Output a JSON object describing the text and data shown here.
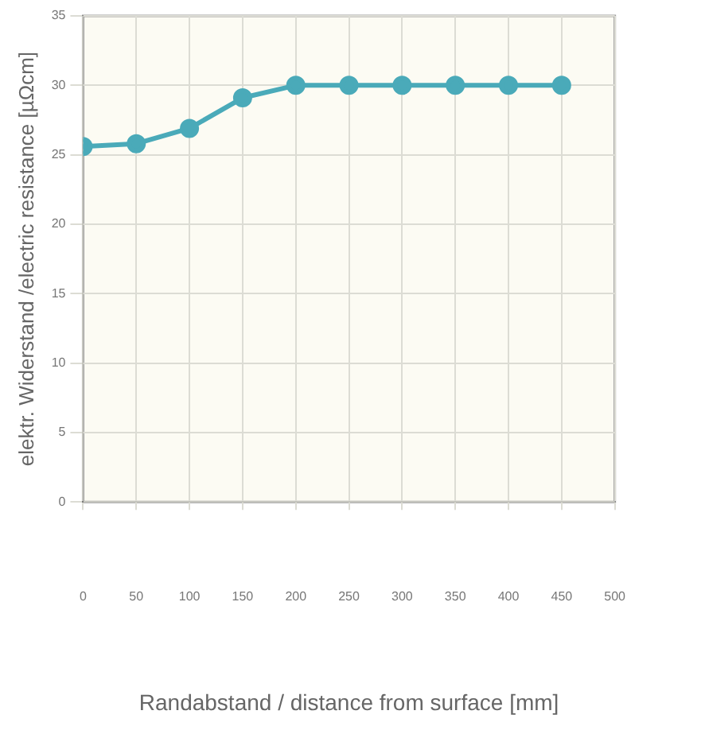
{
  "chart_data": {
    "type": "line",
    "xlabel": "Randabstand / distance from surface [mm]",
    "ylabel": "elektr. Widerstand /electric resistance [µΩcm]",
    "x": [
      0,
      50,
      100,
      150,
      200,
      250,
      300,
      350,
      400,
      450
    ],
    "series": [
      {
        "color": "#4aaab9",
        "values": [
          25.6,
          25.8,
          26.9,
          29.1,
          30,
          30,
          30,
          30,
          30,
          30
        ]
      }
    ],
    "xlim": [
      0,
      500
    ],
    "xticks": [
      0,
      50,
      100,
      150,
      200,
      250,
      300,
      350,
      400,
      450,
      500
    ],
    "ylim": [
      0,
      35
    ],
    "yticks": [
      0,
      5,
      10,
      15,
      20,
      25,
      30,
      35
    ],
    "grid": true,
    "marker": "circle",
    "line_style": "solid",
    "legend": false
  }
}
